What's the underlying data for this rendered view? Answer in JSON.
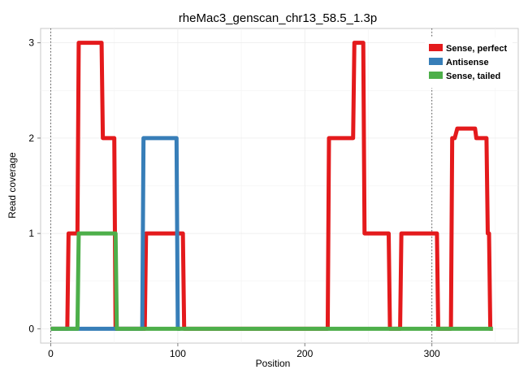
{
  "chart_data": {
    "type": "line",
    "title": "rheMac3_genscan_chr13_58.5_1.3p",
    "xlabel": "Position",
    "ylabel": "Read coverage",
    "xlim": [
      -8,
      368
    ],
    "ylim": [
      -0.15,
      3.15
    ],
    "x_ticks": [
      0,
      100,
      200,
      300
    ],
    "y_ticks": [
      0,
      1,
      2,
      3
    ],
    "vlines": [
      0,
      300
    ],
    "grid": true,
    "legend_position": "top-right",
    "series": [
      {
        "name": "Sense, perfect",
        "color": "#e41a1c",
        "x": [
          0,
          13,
          14,
          21,
          22,
          40,
          41,
          50,
          51,
          70,
          74,
          75,
          104,
          105,
          218,
          219,
          238,
          239,
          246,
          247,
          266,
          267,
          274,
          275,
          275,
          276,
          304,
          305,
          315,
          316,
          318,
          320,
          334,
          335,
          343,
          344,
          345,
          346,
          348
        ],
        "y": [
          0,
          0,
          1,
          1,
          3,
          3,
          2,
          2,
          0,
          0,
          0,
          1,
          1,
          0,
          0,
          2,
          2,
          3,
          3,
          1,
          1,
          0,
          0,
          0,
          0,
          1,
          1,
          0,
          0,
          2,
          2,
          2.1,
          2.1,
          2,
          2,
          1,
          1,
          0,
          0
        ]
      },
      {
        "name": "Antisense",
        "color": "#377eb8",
        "x": [
          0,
          72,
          73,
          99,
          100,
          102
        ],
        "y": [
          0,
          0,
          2,
          2,
          0,
          0
        ]
      },
      {
        "name": "Sense, tailed",
        "color": "#4daf4a",
        "x": [
          0,
          21,
          22,
          51,
          52,
          348
        ],
        "y": [
          0,
          0,
          1,
          1,
          0,
          0
        ]
      }
    ]
  }
}
